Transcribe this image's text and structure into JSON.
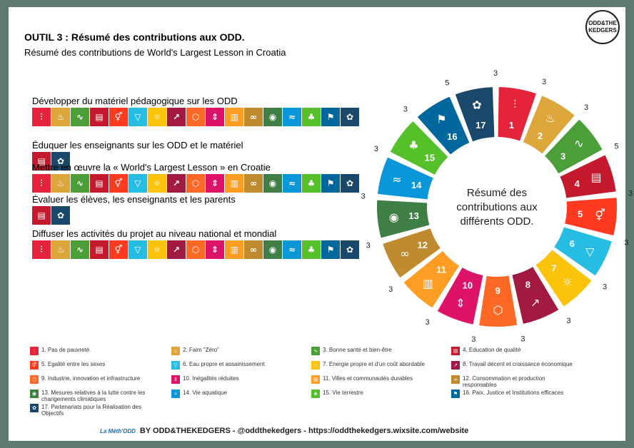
{
  "header": {
    "title": "OUTIL 3 : Résumé des contributions aux ODD.",
    "subtitle": "Résumé des contributions de World's Largest Lesson in Croatia",
    "logo_line1": "ODD&THE",
    "logo_line2": "KEDGERS"
  },
  "sdg_colors": [
    "#e5243b",
    "#dda63a",
    "#4c9f38",
    "#c5192d",
    "#ff3a21",
    "#26bde2",
    "#fcc30b",
    "#a21942",
    "#fd6925",
    "#dd1367",
    "#fd9d24",
    "#bf8b2e",
    "#3f7e44",
    "#0a97d9",
    "#56c02b",
    "#00689d",
    "#19486a"
  ],
  "icon_glyphs": [
    "⫶",
    "♨",
    "∿",
    "▤",
    "⚥",
    "▽",
    "☼",
    "↗",
    "⬡",
    "⇕",
    "▥",
    "∞",
    "◉",
    "≈",
    "♣",
    "⚑",
    "✿"
  ],
  "activities": [
    {
      "label": "Développer du matériel pédagogique sur les ODD",
      "goals": [
        1,
        2,
        3,
        4,
        5,
        6,
        7,
        8,
        9,
        10,
        11,
        12,
        13,
        14,
        15,
        16,
        17
      ]
    },
    {
      "label": "Éduquer les enseignants sur les ODD et le matériel",
      "goals": [
        4,
        17
      ]
    },
    {
      "label": "Mettre en œuvre la « World's Largest Lesson » en Croatie",
      "goals": [
        1,
        2,
        3,
        4,
        5,
        6,
        7,
        8,
        9,
        10,
        11,
        12,
        13,
        14,
        15,
        16,
        17
      ]
    },
    {
      "label": "Évaluer les élèves, les enseignants et les parents",
      "goals": [
        4,
        17
      ]
    },
    {
      "label": "Diffuser les activités du projet au niveau national et mondial",
      "goals": [
        1,
        2,
        3,
        4,
        5,
        6,
        7,
        8,
        9,
        10,
        11,
        12,
        13,
        14,
        15,
        16,
        17
      ]
    }
  ],
  "wheel": {
    "center_line1": "Résumé des",
    "center_line2": "contributions aux",
    "center_line3": "différents ODD.",
    "numbers": [
      "1",
      "2",
      "3",
      "4",
      "5",
      "6",
      "7",
      "8",
      "9",
      "10",
      "11",
      "12",
      "13",
      "14",
      "15",
      "16",
      "17"
    ],
    "counts": [
      3,
      3,
      3,
      5,
      3,
      3,
      3,
      3,
      3,
      3,
      3,
      3,
      3,
      3,
      3,
      3,
      5
    ]
  },
  "legend": [
    {
      "num": "1",
      "label": "1. Pas de pauvreté"
    },
    {
      "num": "2",
      "label": "2. Faim \"Zéro\""
    },
    {
      "num": "3",
      "label": "3. Bonne santé et bien-être"
    },
    {
      "num": "4",
      "label": "4. Education de qualité"
    },
    {
      "num": "5",
      "label": "5. Egalité entre les sexes"
    },
    {
      "num": "6",
      "label": "6. Eau propre et assainissement"
    },
    {
      "num": "7",
      "label": "7. Energie propre et d'un coût abordable"
    },
    {
      "num": "8",
      "label": "8. Travail décent et croissance économique"
    },
    {
      "num": "9",
      "label": "9. Industrie, innovation et infrastructure"
    },
    {
      "num": "10",
      "label": "10. Inégalités réduites"
    },
    {
      "num": "11",
      "label": "11. Villes et communautés durables"
    },
    {
      "num": "12",
      "label": "12. Consommation et production responsables"
    },
    {
      "num": "13",
      "label": "13. Mesures relatives à la lutte contre les changements climatiques"
    },
    {
      "num": "14",
      "label": "14. Vie aquatique"
    },
    {
      "num": "15",
      "label": "15. Vie terrestre"
    },
    {
      "num": "16",
      "label": "16. Paix, Justice et Institutions efficaces"
    },
    {
      "num": "17",
      "label": "17. Partenariats pour la Réalisation des Objectifs"
    }
  ],
  "footer": {
    "logo_text": "La Méth'ODD",
    "text": "BY ODD&THEKEDGERS  -  @oddthekedgers  -  https://oddthekedgers.wixsite.com/website"
  }
}
